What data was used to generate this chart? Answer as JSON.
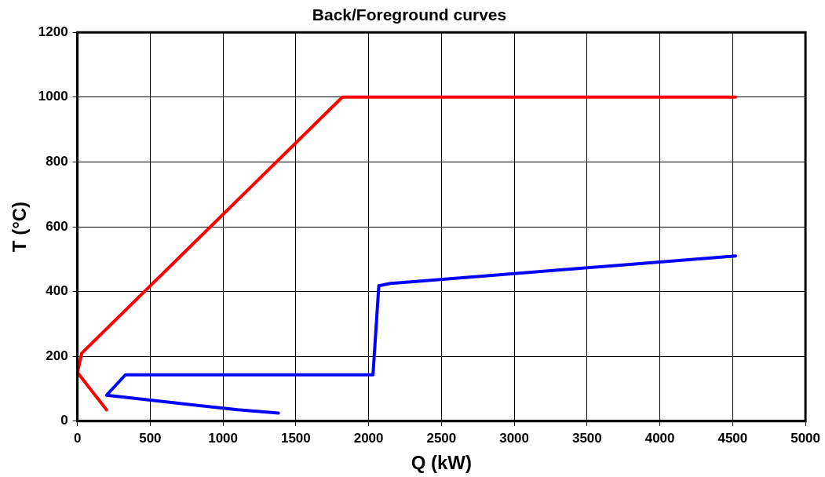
{
  "chart_data": {
    "type": "line",
    "title": "Back/Foreground curves",
    "xlabel": "Q (kW)",
    "ylabel": "T (°C)",
    "xlim": [
      0,
      5000
    ],
    "xticks": [
      0,
      500,
      1000,
      1500,
      2000,
      2500,
      3000,
      3500,
      4000,
      4500,
      5000
    ],
    "ylim": [
      0,
      1200
    ],
    "yticks": [
      0,
      200,
      400,
      600,
      800,
      1000,
      1200
    ],
    "grid": true,
    "legend": false,
    "marker": "none",
    "line_style": "solid",
    "series": [
      {
        "color": "#ff0000",
        "x": [
          200,
          0,
          30,
          1820,
          4520
        ],
        "values": [
          35,
          150,
          210,
          1000,
          1000
        ]
      },
      {
        "color": "#0000ff",
        "x": [
          1380,
          1100,
          200,
          330,
          2030,
          2070,
          2150,
          4520
        ],
        "values": [
          25,
          35,
          80,
          143,
          143,
          418,
          425,
          510
        ]
      }
    ]
  }
}
